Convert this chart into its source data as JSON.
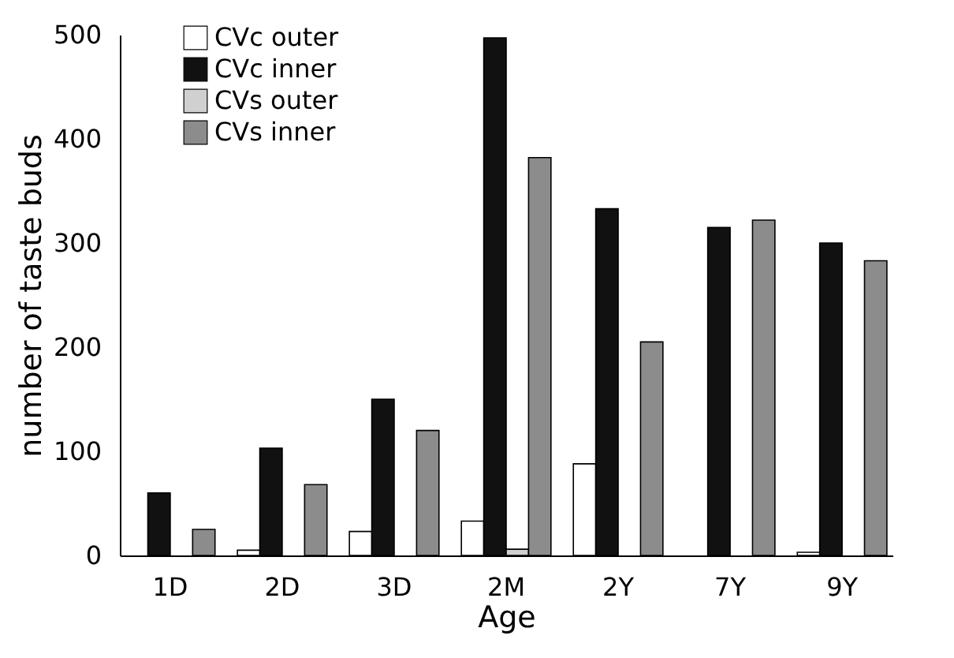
{
  "chart_data": {
    "type": "bar",
    "xlabel": "Age",
    "ylabel": "number of taste buds",
    "categories": [
      "1D",
      "2D",
      "3D",
      "2M",
      "2Y",
      "7Y",
      "9Y"
    ],
    "series": [
      {
        "name": "CVc outer",
        "color": "#ffffff",
        "values": [
          null,
          5,
          23,
          33,
          88,
          null,
          3
        ]
      },
      {
        "name": "CVc inner",
        "color": "#111111",
        "values": [
          60,
          103,
          150,
          497,
          333,
          315,
          300
        ]
      },
      {
        "name": "CVs outer",
        "color": "#d0d0d0",
        "values": [
          null,
          null,
          null,
          6,
          null,
          null,
          null
        ]
      },
      {
        "name": "CVs inner",
        "color": "#8c8c8c",
        "values": [
          25,
          68,
          120,
          382,
          205,
          322,
          283
        ]
      }
    ],
    "ylim": [
      0,
      500
    ],
    "yticks": [
      0,
      100,
      200,
      300,
      400,
      500
    ],
    "grid": false,
    "legend": "top left"
  }
}
